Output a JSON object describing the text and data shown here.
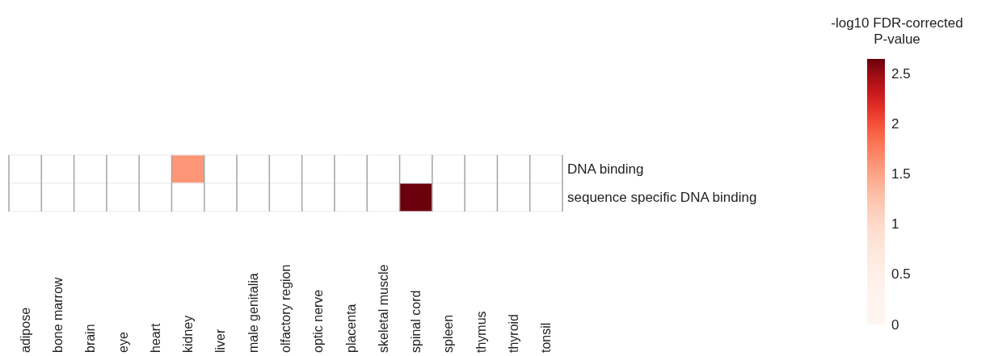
{
  "chart_data": {
    "type": "heatmap",
    "clabel": "-log10 FDR-corrected P-value",
    "categories": [
      "adipose",
      "bone marrow",
      "brain",
      "eye",
      "heart",
      "kidney",
      "liver",
      "male genitalia",
      "olfactory region",
      "optic nerve",
      "placenta",
      "skeletal muscle",
      "spinal cord",
      "spleen",
      "thymus",
      "thyroid",
      "tonsil"
    ],
    "y_categories": [
      "DNA binding",
      "sequence specific DNA binding"
    ],
    "cells": [
      [
        null,
        null,
        null,
        null,
        null,
        1.6,
        null,
        null,
        null,
        null,
        null,
        null,
        null,
        null,
        null,
        null,
        null
      ],
      [
        null,
        null,
        null,
        null,
        null,
        null,
        null,
        null,
        null,
        null,
        null,
        null,
        2.64,
        null,
        null,
        null,
        null
      ]
    ],
    "clim": [
      0,
      2.65
    ],
    "cticks": [
      0,
      0.5,
      1,
      1.5,
      2,
      2.5
    ]
  }
}
